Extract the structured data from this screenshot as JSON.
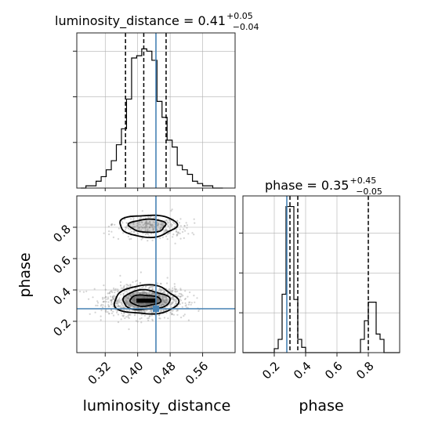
{
  "chart_data": {
    "type": "corner",
    "params": [
      "luminosity_distance",
      "phase"
    ],
    "truths": {
      "luminosity_distance": 0.445,
      "phase": 0.28
    },
    "titles": [
      {
        "name": "luminosity_distance",
        "median": "0.41",
        "plus": "+0.05",
        "minus": "−0.04"
      },
      {
        "name": "phase",
        "median": "0.35",
        "plus": "+0.45",
        "minus": "−0.05"
      }
    ],
    "panels": [
      {
        "id": "hist-luminosity_distance",
        "type": "histogram",
        "xlim": [
          0.25,
          0.64
        ],
        "quantiles": [
          0.37,
          0.415,
          0.47
        ],
        "truth": 0.445,
        "bin_edges": [
          0.26,
          0.2725,
          0.285,
          0.2975,
          0.31,
          0.3225,
          0.335,
          0.3475,
          0.36,
          0.3725,
          0.385,
          0.3975,
          0.41,
          0.4225,
          0.435,
          0.4475,
          0.46,
          0.4725,
          0.485,
          0.4975,
          0.51,
          0.5225,
          0.535,
          0.5475,
          0.56,
          0.5725,
          0.585,
          0.5975,
          0.61
        ],
        "counts": [
          0,
          1,
          1,
          3,
          5,
          8,
          12,
          19,
          26,
          39,
          57,
          58,
          61,
          60,
          56,
          38,
          31,
          21,
          18,
          10,
          8,
          6,
          3,
          2,
          1,
          1,
          0,
          0
        ],
        "ylim": [
          0,
          68
        ],
        "yticks": [
          20,
          40,
          60
        ]
      },
      {
        "id": "hist-phase",
        "type": "histogram",
        "xlim": [
          0.0,
          1.0
        ],
        "xticks": [
          0.2,
          0.4,
          0.6,
          0.8
        ],
        "xtick_labels": [
          "0.2",
          "0.4",
          "0.6",
          "0.8"
        ],
        "quantiles": [
          0.3,
          0.35,
          0.8
        ],
        "truth": 0.28,
        "bin_edges": [
          0.0,
          0.025,
          0.05,
          0.075,
          0.1,
          0.125,
          0.15,
          0.175,
          0.2,
          0.225,
          0.25,
          0.275,
          0.3,
          0.325,
          0.35,
          0.375,
          0.4,
          0.425,
          0.45,
          0.475,
          0.5,
          0.525,
          0.55,
          0.575,
          0.6,
          0.625,
          0.65,
          0.675,
          0.7,
          0.725,
          0.75,
          0.775,
          0.8,
          0.825,
          0.85,
          0.875,
          0.9,
          0.925,
          0.95,
          0.975,
          1.0
        ],
        "counts": [
          0,
          0,
          0,
          0,
          0,
          0,
          0,
          0,
          3,
          10,
          44,
          110,
          110,
          40,
          10,
          4,
          0,
          0,
          0,
          0,
          0,
          0,
          0,
          0,
          0,
          0,
          0,
          0,
          0,
          0,
          10,
          24,
          38,
          38,
          14,
          10,
          0,
          0,
          0,
          0
        ],
        "ylim": [
          0,
          118
        ],
        "yticks": [
          30,
          60,
          90
        ]
      },
      {
        "id": "scatter-2d",
        "type": "contour",
        "xlim": [
          0.25,
          0.64
        ],
        "ylim": [
          0.0,
          1.0
        ],
        "xticks": [
          0.32,
          0.4,
          0.48,
          0.56
        ],
        "xtick_labels": [
          "0.32",
          "0.40",
          "0.48",
          "0.56"
        ],
        "yticks": [
          0.2,
          0.4,
          0.6,
          0.8
        ],
        "ytick_labels": [
          "0.2",
          "0.4",
          "0.6",
          "0.8"
        ],
        "truth": [
          0.445,
          0.28
        ],
        "density_modes": [
          {
            "x": 0.418,
            "y": 0.33,
            "sx": 0.048,
            "sy": 0.048,
            "weight": 0.8
          },
          {
            "x": 0.43,
            "y": 0.8,
            "sx": 0.045,
            "sy": 0.035,
            "weight": 0.2
          }
        ],
        "contours": [
          {
            "cx": 0.42,
            "cy": 0.335,
            "rx": 0.078,
            "ry": 0.092
          },
          {
            "cx": 0.42,
            "cy": 0.335,
            "rx": 0.058,
            "ry": 0.062
          },
          {
            "cx": 0.418,
            "cy": 0.333,
            "rx": 0.038,
            "ry": 0.035
          },
          {
            "cx": 0.425,
            "cy": 0.81,
            "rx": 0.07,
            "ry": 0.07
          },
          {
            "cx": 0.425,
            "cy": 0.81,
            "rx": 0.045,
            "ry": 0.042
          }
        ]
      }
    ],
    "xlabels": [
      "luminosity_distance",
      "phase"
    ],
    "ylabels": [
      "phase"
    ],
    "grid": true
  },
  "colors": {
    "truth": "#4682b4",
    "hist": "#000000",
    "grid": "#b0b0b0",
    "points": "#9e9e9e"
  }
}
